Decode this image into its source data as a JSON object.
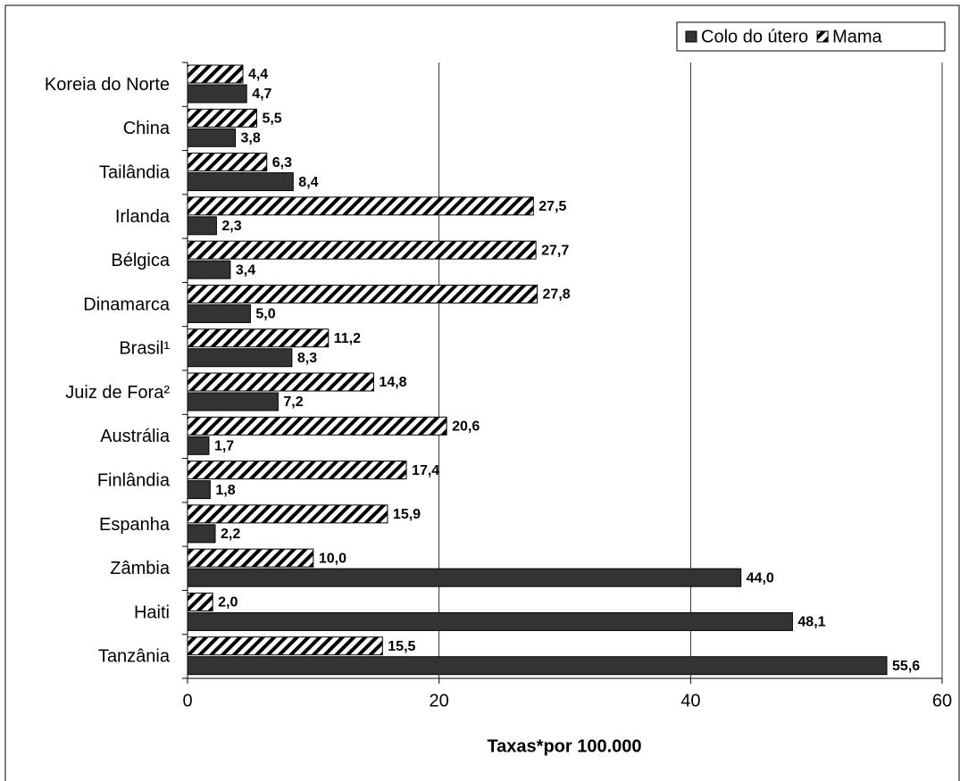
{
  "chart_data": {
    "type": "hbar",
    "xlabel": "Taxas*por 100.000",
    "categories": [
      "Koreia do Norte",
      "China",
      "Tailândia",
      "Irlanda",
      "Bélgica",
      "Dinamarca",
      "Brasil¹",
      "Juiz de Fora²",
      "Austrália",
      "Finlândia",
      "Espanha",
      "Zâmbia",
      "Haiti",
      "Tanzânia"
    ],
    "series": [
      {
        "name": "Colo do útero",
        "color": "#333333",
        "values": [
          4.7,
          3.8,
          8.4,
          2.3,
          3.4,
          5.0,
          8.3,
          7.2,
          1.7,
          1.8,
          2.2,
          44.0,
          48.1,
          55.6
        ],
        "value_labels": [
          "4,7",
          "3,8",
          "8,4",
          "2,3",
          "3,4",
          "5,0",
          "8,3",
          "7,2",
          "1,7",
          "1,8",
          "2,2",
          "44,0",
          "48,1",
          "55,6"
        ]
      },
      {
        "name": "Mama",
        "color": "#000000",
        "hatch": true,
        "values": [
          4.4,
          5.5,
          6.3,
          27.5,
          27.7,
          27.8,
          11.2,
          14.8,
          20.6,
          17.4,
          15.9,
          10.0,
          2.0,
          15.5
        ],
        "value_labels": [
          "4,4",
          "5,5",
          "6,3",
          "27,5",
          "27,7",
          "27,8",
          "11,2",
          "14,8",
          "20,6",
          "17,4",
          "15,9",
          "10,0",
          "2,0",
          "15,5"
        ]
      }
    ],
    "xlim": [
      0,
      60
    ],
    "xticks": [
      0,
      20,
      40,
      60
    ],
    "grid": true,
    "legend": "top-right"
  }
}
